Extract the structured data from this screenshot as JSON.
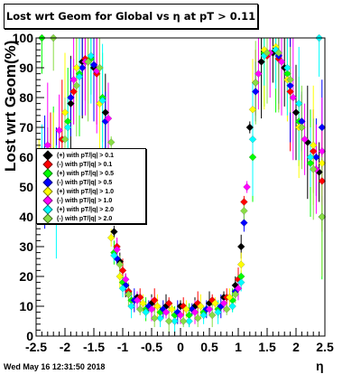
{
  "title": "Lost wrt Geom for Global vs   η at pT > 0.11",
  "datestamp": "Wed May 16 12:31:50 2018",
  "chart_data": {
    "type": "scatter",
    "title": "Lost wrt Geom for Global vs   η at pT > 0.11",
    "xlabel": "η",
    "ylabel": "Lost wrt Geom(%)",
    "xlim": [
      -2.5,
      2.5
    ],
    "ylim": [
      0,
      100
    ],
    "x_ticks": [
      "-2.5",
      "-2",
      "-1.5",
      "-1",
      "-0.5",
      "0",
      "0.5",
      "1",
      "1.5",
      "2",
      "2.5"
    ],
    "y_ticks": [
      "0",
      "10",
      "20",
      "30",
      "40",
      "50",
      "60",
      "70",
      "80",
      "90",
      "100"
    ],
    "grid": false,
    "legend_position": "left",
    "series": [
      {
        "name": "(+) with pT/|q| > 0.1",
        "color": "#000000",
        "points": [
          [
            -2.3,
            60
          ],
          [
            -2.1,
            55
          ],
          [
            -1.9,
            78
          ],
          [
            -1.7,
            92
          ],
          [
            -1.5,
            90
          ],
          [
            -1.3,
            75
          ],
          [
            -1.15,
            35
          ],
          [
            -1.05,
            25
          ],
          [
            -0.95,
            17
          ],
          [
            -0.75,
            13
          ],
          [
            -0.5,
            11
          ],
          [
            -0.25,
            10
          ],
          [
            0,
            10
          ],
          [
            0.25,
            10
          ],
          [
            0.5,
            11
          ],
          [
            0.75,
            13
          ],
          [
            0.95,
            17
          ],
          [
            1.05,
            30
          ],
          [
            1.2,
            70
          ],
          [
            1.4,
            92
          ],
          [
            1.6,
            95
          ],
          [
            1.8,
            90
          ],
          [
            2.0,
            75
          ],
          [
            2.2,
            65
          ],
          [
            2.4,
            55
          ]
        ]
      },
      {
        "name": "(-) with pT/|q| > 0.1",
        "color": "#ff0000",
        "points": [
          [
            -2.25,
            58
          ],
          [
            -2.05,
            66
          ],
          [
            -1.85,
            82
          ],
          [
            -1.65,
            93
          ],
          [
            -1.45,
            88
          ],
          [
            -1.25,
            62
          ],
          [
            -1.1,
            30
          ],
          [
            -1.0,
            22
          ],
          [
            -0.9,
            15
          ],
          [
            -0.7,
            13
          ],
          [
            -0.45,
            12
          ],
          [
            -0.2,
            11
          ],
          [
            0.05,
            10
          ],
          [
            0.3,
            11
          ],
          [
            0.55,
            12
          ],
          [
            0.8,
            13
          ],
          [
            1.0,
            19
          ],
          [
            1.1,
            45
          ],
          [
            1.3,
            85
          ],
          [
            1.5,
            94
          ],
          [
            1.7,
            93
          ],
          [
            1.9,
            82
          ],
          [
            2.1,
            70
          ],
          [
            2.3,
            62
          ],
          [
            2.45,
            52
          ]
        ]
      },
      {
        "name": "(+) with pT/|q| > 0.5",
        "color": "#00ff00",
        "points": [
          [
            -2.4,
            100
          ],
          [
            -2.2,
            62
          ],
          [
            -1.95,
            72
          ],
          [
            -1.75,
            88
          ],
          [
            -1.55,
            93
          ],
          [
            -1.35,
            80
          ],
          [
            -1.15,
            28
          ],
          [
            -1.0,
            18
          ],
          [
            -0.85,
            12
          ],
          [
            -0.6,
            9
          ],
          [
            -0.35,
            8
          ],
          [
            -0.1,
            7
          ],
          [
            0.15,
            7
          ],
          [
            0.4,
            8
          ],
          [
            0.65,
            9
          ],
          [
            0.9,
            12
          ],
          [
            1.05,
            20
          ],
          [
            1.25,
            60
          ],
          [
            1.45,
            95
          ],
          [
            1.65,
            96
          ],
          [
            1.85,
            88
          ],
          [
            2.05,
            72
          ],
          [
            2.25,
            58
          ],
          [
            2.45,
            40
          ]
        ]
      },
      {
        "name": "(-) with pT/|q| > 0.5",
        "color": "#0000ff",
        "points": [
          [
            -2.35,
            55
          ],
          [
            -2.15,
            60
          ],
          [
            -1.9,
            80
          ],
          [
            -1.7,
            90
          ],
          [
            -1.5,
            91
          ],
          [
            -1.3,
            72
          ],
          [
            -1.1,
            26
          ],
          [
            -0.95,
            17
          ],
          [
            -0.8,
            12
          ],
          [
            -0.55,
            10
          ],
          [
            -0.3,
            9
          ],
          [
            -0.05,
            8
          ],
          [
            0.2,
            9
          ],
          [
            0.45,
            9
          ],
          [
            0.7,
            10
          ],
          [
            0.95,
            15
          ],
          [
            1.1,
            38
          ],
          [
            1.3,
            82
          ],
          [
            1.5,
            95
          ],
          [
            1.7,
            94
          ],
          [
            1.9,
            84
          ],
          [
            2.1,
            72
          ],
          [
            2.35,
            60
          ],
          [
            2.45,
            70
          ]
        ]
      },
      {
        "name": "(+) with pT/|q| > 1.0",
        "color": "#ffff00",
        "points": [
          [
            -2.45,
            52
          ],
          [
            -2.2,
            58
          ],
          [
            -2.0,
            75
          ],
          [
            -1.8,
            90
          ],
          [
            -1.6,
            92
          ],
          [
            -1.4,
            78
          ],
          [
            -1.2,
            33
          ],
          [
            -1.05,
            20
          ],
          [
            -0.9,
            14
          ],
          [
            -0.65,
            11
          ],
          [
            -0.4,
            10
          ],
          [
            -0.15,
            9
          ],
          [
            0.1,
            9
          ],
          [
            0.35,
            10
          ],
          [
            0.6,
            11
          ],
          [
            0.85,
            13
          ],
          [
            1.05,
            24
          ],
          [
            1.25,
            76
          ],
          [
            1.45,
            96
          ],
          [
            1.65,
            97
          ],
          [
            1.85,
            86
          ],
          [
            2.05,
            70
          ],
          [
            2.3,
            64
          ],
          [
            2.45,
            58
          ]
        ]
      },
      {
        "name": "(-) with pT/|q| > 1.0",
        "color": "#ff00ff",
        "points": [
          [
            -2.3,
            64
          ],
          [
            -2.1,
            69
          ],
          [
            -1.85,
            86
          ],
          [
            -1.65,
            92
          ],
          [
            -1.45,
            89
          ],
          [
            -1.25,
            73
          ],
          [
            -1.1,
            29
          ],
          [
            -0.95,
            19
          ],
          [
            -0.75,
            12
          ],
          [
            -0.5,
            9
          ],
          [
            -0.25,
            8
          ],
          [
            0,
            7
          ],
          [
            0.25,
            8
          ],
          [
            0.5,
            9
          ],
          [
            0.75,
            11
          ],
          [
            1.0,
            16
          ],
          [
            1.15,
            50
          ],
          [
            1.35,
            88
          ],
          [
            1.55,
            95
          ],
          [
            1.75,
            92
          ],
          [
            1.95,
            80
          ],
          [
            2.15,
            66
          ],
          [
            2.35,
            56
          ],
          [
            2.45,
            62
          ]
        ]
      },
      {
        "name": "(+) with pT/|q| > 2.0",
        "color": "#00ffff",
        "points": [
          [
            -2.4,
            55
          ],
          [
            -2.15,
            45
          ],
          [
            -1.95,
            70
          ],
          [
            -1.75,
            87
          ],
          [
            -1.55,
            94
          ],
          [
            -1.35,
            79
          ],
          [
            -1.15,
            27
          ],
          [
            -1.0,
            16
          ],
          [
            -0.85,
            10
          ],
          [
            -0.6,
            8
          ],
          [
            -0.35,
            6
          ],
          [
            -0.1,
            5
          ],
          [
            0.15,
            5
          ],
          [
            0.4,
            7
          ],
          [
            0.65,
            8
          ],
          [
            0.9,
            10
          ],
          [
            1.05,
            18
          ],
          [
            1.25,
            66
          ],
          [
            1.45,
            94
          ],
          [
            1.65,
            96
          ],
          [
            1.85,
            90
          ],
          [
            2.05,
            78
          ],
          [
            2.25,
            60
          ],
          [
            2.4,
            100
          ]
        ]
      },
      {
        "name": "(-) with pT/|q| > 2.0",
        "color": "#88dd44",
        "points": [
          [
            -2.2,
            100
          ],
          [
            -2.0,
            66
          ],
          [
            -1.8,
            84
          ],
          [
            -1.6,
            92
          ],
          [
            -1.4,
            90
          ],
          [
            -1.2,
            65
          ],
          [
            -1.05,
            24
          ],
          [
            -0.9,
            14
          ],
          [
            -0.7,
            9
          ],
          [
            -0.45,
            6
          ],
          [
            -0.2,
            5
          ],
          [
            0.05,
            5
          ],
          [
            0.3,
            6
          ],
          [
            0.55,
            7
          ],
          [
            0.8,
            9
          ],
          [
            0.95,
            14
          ],
          [
            1.1,
            42
          ],
          [
            1.3,
            85
          ],
          [
            1.5,
            95
          ],
          [
            1.7,
            95
          ],
          [
            1.9,
            86
          ],
          [
            2.1,
            70
          ],
          [
            2.3,
            56
          ],
          [
            2.45,
            40
          ]
        ]
      }
    ]
  }
}
